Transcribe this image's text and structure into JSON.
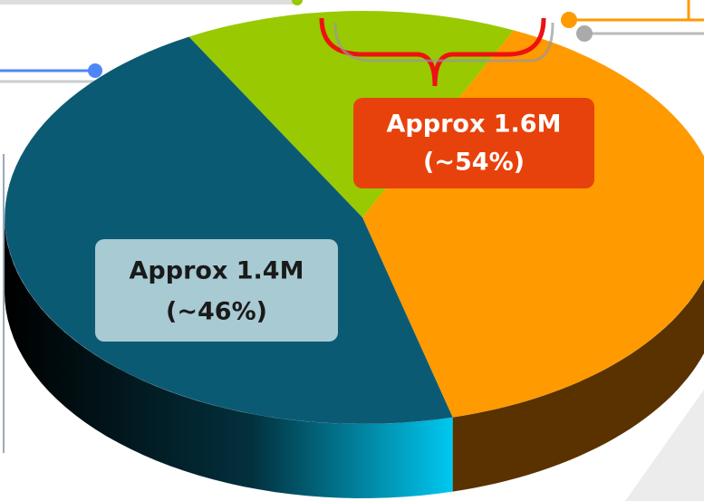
{
  "chart_data": {
    "type": "pie",
    "categories": [
      null,
      null,
      null
    ],
    "values": [
      15,
      39,
      46
    ],
    "colors": [
      "#99c900",
      "#ff9a00",
      "#0b5a73"
    ],
    "annotations": [
      {
        "text": "Approx 1.6M",
        "subtext": "(~54%)"
      },
      {
        "text": "Approx 1.4M",
        "subtext": "(~46%)"
      }
    ]
  }
}
